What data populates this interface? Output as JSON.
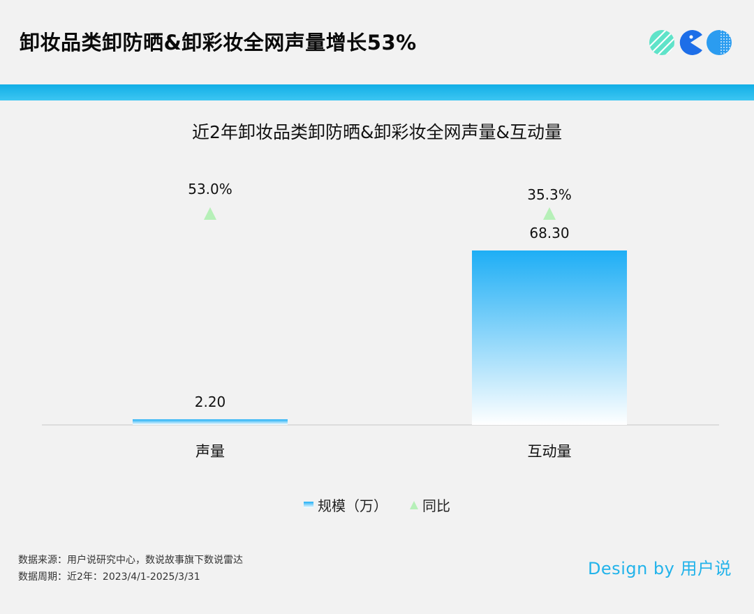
{
  "header": {
    "title": "卸妆品类卸防晒&卸彩妆全网声量增长53%"
  },
  "chart_data": {
    "type": "bar",
    "title": "近2年卸妆品类卸防晒&卸彩妆全网声量&互动量",
    "categories": [
      "声量",
      "互动量"
    ],
    "series": [
      {
        "name": "规模（万）",
        "values": [
          2.2,
          68.3
        ],
        "labels": [
          "2.20",
          "68.30"
        ]
      },
      {
        "name": "同比",
        "values": [
          53.0,
          35.3
        ],
        "labels": [
          "53.0%",
          "35.3%"
        ]
      }
    ],
    "ylim": [
      0,
      70
    ],
    "legend_position": "bottom",
    "grid": false,
    "colors": {
      "bar_top": "#1eaef5",
      "bar_bottom": "#ffffff",
      "triangle": "#b6f0b8"
    }
  },
  "legend": {
    "items": [
      {
        "label": "规模（万）"
      },
      {
        "label": "同比"
      }
    ]
  },
  "footer": {
    "source": "数据来源：用户说研究中心，数说故事旗下数说雷达",
    "period": "数据周期：近2年：2023/4/1-2025/3/31"
  },
  "brand": {
    "text": "Design by 用户说"
  },
  "colors": {
    "accent": "#22b3ea",
    "band": "#12aee6",
    "background": "#f2f2f2"
  }
}
